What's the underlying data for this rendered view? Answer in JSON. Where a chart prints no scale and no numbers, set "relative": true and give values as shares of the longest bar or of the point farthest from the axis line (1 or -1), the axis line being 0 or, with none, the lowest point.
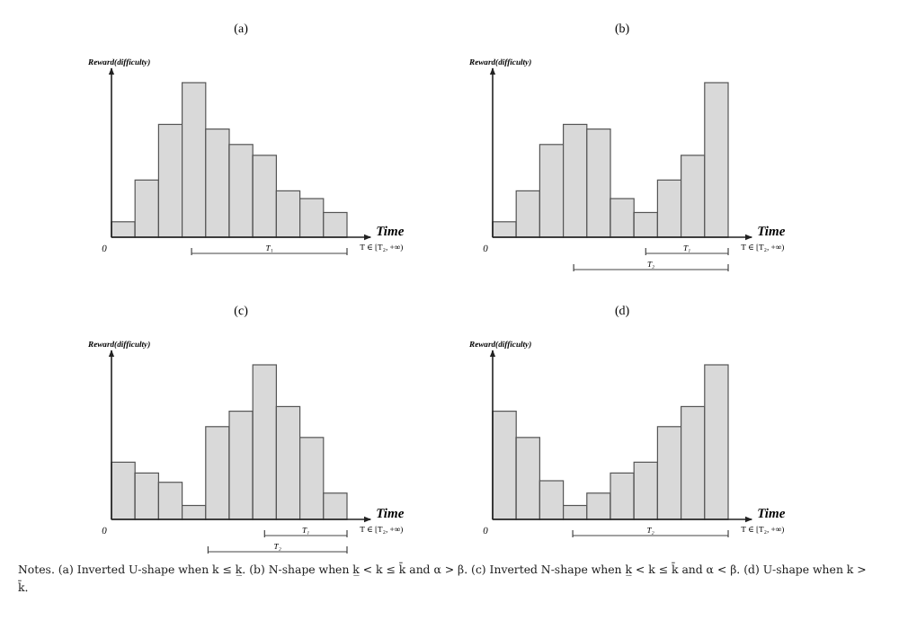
{
  "chart_data": [
    {
      "type": "bar",
      "title": "(a)",
      "xlabel": "Time",
      "ylabel": "Reward(difficulty)",
      "relative": true,
      "categories": [
        null,
        null,
        null,
        null,
        null,
        null,
        null,
        null,
        null,
        null
      ],
      "color": "#d9d9d9",
      "values": [
        0.1,
        0.37,
        0.73,
        1,
        0.7,
        0.6,
        0.53,
        0.3,
        0.25,
        0.16
      ],
      "annotations": [
        "0",
        "T ∈ [T₂, +∞)",
        "T₁"
      ]
    },
    {
      "type": "bar",
      "title": "(b)",
      "xlabel": "Time",
      "ylabel": "Reward(difficulty)",
      "relative": true,
      "categories": [
        null,
        null,
        null,
        null,
        null,
        null,
        null,
        null,
        null,
        null
      ],
      "color": "#d9d9d9",
      "values": [
        0.1,
        0.3,
        0.6,
        0.73,
        0.7,
        0.25,
        0.16,
        0.37,
        0.53,
        1
      ],
      "annotations": [
        "0",
        "T ∈ [T₂, +∞)",
        "T₁",
        "T₂"
      ]
    },
    {
      "type": "bar",
      "title": "(c)",
      "xlabel": "Time",
      "ylabel": "Reward(difficulty)",
      "relative": true,
      "categories": [
        null,
        null,
        null,
        null,
        null,
        null,
        null,
        null,
        null,
        null
      ],
      "color": "#d9d9d9",
      "values": [
        0.37,
        0.3,
        0.24,
        0.09,
        0.6,
        0.7,
        1,
        0.73,
        0.53,
        0.17
      ],
      "annotations": [
        "0",
        "T ∈ [T₂, +∞)",
        "T₁",
        "T₂"
      ]
    },
    {
      "type": "bar",
      "title": "(d)",
      "xlabel": "Time",
      "ylabel": "Reward(difficulty)",
      "relative": true,
      "categories": [
        null,
        null,
        null,
        null,
        null,
        null,
        null,
        null,
        null,
        null
      ],
      "color": "#d9d9d9",
      "values": [
        0.7,
        0.53,
        0.25,
        0.09,
        0.17,
        0.3,
        0.37,
        0.6,
        0.73,
        1
      ],
      "annotations": [
        "0",
        "T ∈ [T₂, +∞)",
        "T₂",
        "Notes. (a) Inverted U-shape when k ≤ k̲. (b) N-shape when k̲ < k ≤ k̄ and α > β. (c) Inverted N-shape when k̲ < k ≤ k̄ and α < β. (d) U-shape when k > k̄."
      ]
    }
  ]
}
